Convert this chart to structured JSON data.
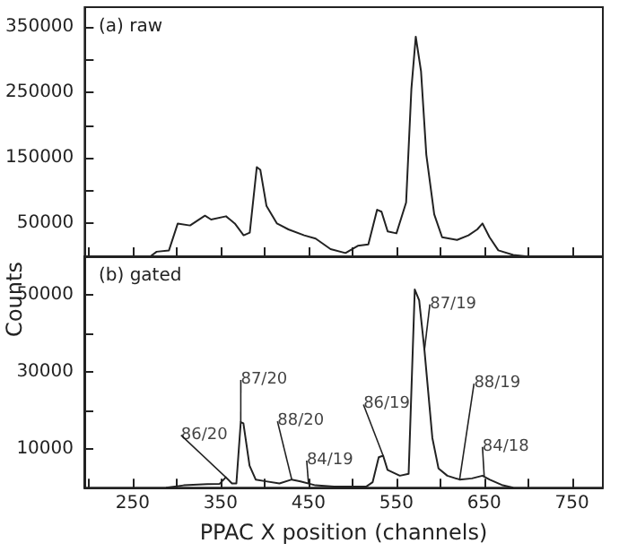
{
  "chart_data": [
    {
      "type": "line",
      "title": "(a) raw",
      "xlim": [
        195,
        785
      ],
      "ylim": [
        0,
        380000
      ],
      "tick_labels": "y",
      "grid": false,
      "marker": "none",
      "line_style": "solid",
      "xticks": [
        {
          "value": 200,
          "label": null
        },
        {
          "value": 250,
          "label": null
        },
        {
          "value": 300,
          "label": null
        },
        {
          "value": 350,
          "label": null
        },
        {
          "value": 400,
          "label": null
        },
        {
          "value": 450,
          "label": null
        },
        {
          "value": 500,
          "label": null
        },
        {
          "value": 550,
          "label": null
        },
        {
          "value": 600,
          "label": null
        },
        {
          "value": 650,
          "label": null
        },
        {
          "value": 700,
          "label": null
        },
        {
          "value": 750,
          "label": null
        }
      ],
      "yticks": [
        50000,
        {
          "value": 100000,
          "label": null
        },
        150000,
        {
          "value": 200000,
          "label": null
        },
        250000,
        {
          "value": 300000,
          "label": null
        },
        350000
      ],
      "series": [
        {
          "color": "#222222",
          "x": [
            270,
            277,
            291,
            301,
            315,
            332,
            339,
            356,
            366,
            376,
            383,
            391,
            395,
            402,
            414,
            427,
            445,
            458,
            475,
            492,
            506,
            518,
            528,
            533,
            540,
            550,
            561,
            567,
            572,
            578,
            584,
            593,
            602,
            619,
            632,
            642,
            648,
            656,
            666,
            683,
            697
          ],
          "values": [
            0,
            7000,
            9000,
            50000,
            47000,
            62000,
            56000,
            61000,
            50000,
            32000,
            36000,
            136000,
            132000,
            77000,
            50000,
            41000,
            32000,
            27000,
            11000,
            5000,
            16000,
            18000,
            71000,
            68000,
            38000,
            35000,
            82000,
            255000,
            335000,
            282000,
            155000,
            64000,
            29000,
            25000,
            32000,
            41000,
            50000,
            29000,
            9000,
            2000,
            0
          ]
        }
      ]
    },
    {
      "type": "line",
      "title": "(b) gated",
      "xlabel": "PPAC X position (channels)",
      "ylabel": "Counts",
      "xlim": [
        195,
        785
      ],
      "ylim": [
        0,
        60000
      ],
      "grid": false,
      "marker": "none",
      "line_style": "solid",
      "xticks": [
        {
          "value": 200,
          "label": null
        },
        250,
        {
          "value": 300,
          "label": null
        },
        350,
        {
          "value": 400,
          "label": null
        },
        450,
        {
          "value": 500,
          "label": null
        },
        550,
        {
          "value": 600,
          "label": null
        },
        650,
        {
          "value": 700,
          "label": null
        },
        750
      ],
      "yticks": [
        10000,
        {
          "value": 20000,
          "label": null
        },
        30000,
        {
          "value": 40000,
          "label": null
        },
        50000
      ],
      "series": [
        {
          "color": "#222222",
          "x": [
            288,
            308,
            335,
            349,
            356,
            363,
            368,
            373,
            376,
            383,
            390,
            400,
            417,
            431,
            441,
            458,
            479,
            516,
            523,
            530,
            535,
            540,
            554,
            564,
            571,
            576,
            582,
            591,
            598,
            608,
            622,
            636,
            648,
            656,
            670,
            683
          ],
          "values": [
            0,
            600,
            900,
            1000,
            2700,
            1100,
            1100,
            17000,
            16700,
            5700,
            2100,
            1700,
            1100,
            2100,
            1600,
            600,
            300,
            300,
            1400,
            7900,
            8300,
            4600,
            3100,
            3600,
            51400,
            48600,
            35700,
            12900,
            5000,
            3100,
            2100,
            2400,
            3100,
            2100,
            700,
            0
          ]
        }
      ],
      "annotations": [
        {
          "text": "86/20",
          "x": 356,
          "y": 2700
        },
        {
          "text": "87/20",
          "x": 373,
          "y": 17000
        },
        {
          "text": "88/20",
          "x": 431,
          "y": 2100
        },
        {
          "text": "84/19",
          "x": 450,
          "y": 1200
        },
        {
          "text": "86/19",
          "x": 535,
          "y": 8300
        },
        {
          "text": "87/19",
          "x": 582,
          "y": 35700
        },
        {
          "text": "88/19",
          "x": 622,
          "y": 2100
        },
        {
          "text": "84/18",
          "x": 650,
          "y": 2900
        }
      ]
    }
  ]
}
